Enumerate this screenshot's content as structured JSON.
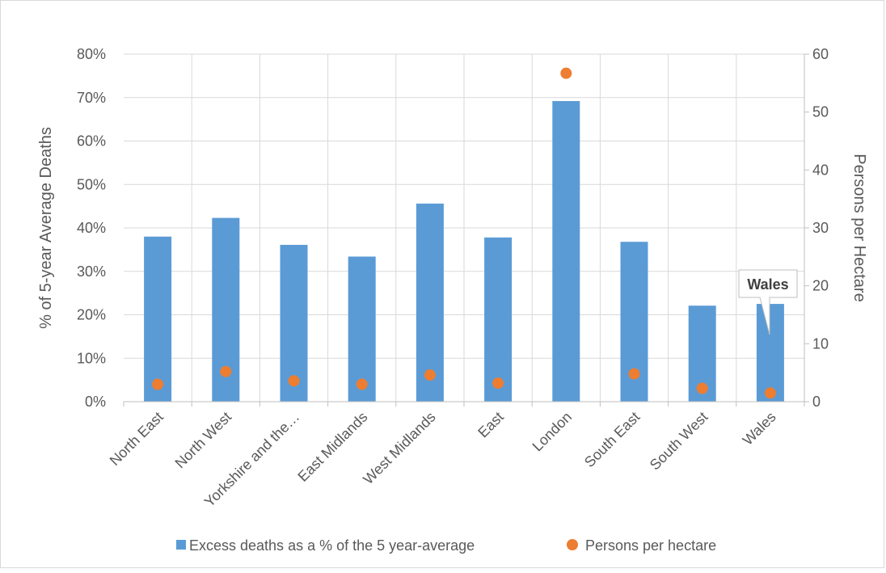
{
  "chart_data": {
    "type": "bar",
    "categories": [
      "North East",
      "North West",
      "Yorkshire and the…",
      "East Midlands",
      "West Midlands",
      "East",
      "London",
      "South East",
      "South West",
      "Wales"
    ],
    "series": [
      {
        "name": "Excess deaths as a % of the 5 year-average",
        "type": "bar",
        "axis": "left",
        "color": "#5b9bd5",
        "values": [
          38.0,
          42.3,
          36.1,
          33.4,
          45.6,
          37.8,
          69.2,
          36.8,
          22.1,
          22.5
        ]
      },
      {
        "name": "Persons per hectare",
        "type": "scatter",
        "axis": "right",
        "color": "#ed7d31",
        "values": [
          3.0,
          5.2,
          3.6,
          3.0,
          4.6,
          3.2,
          56.7,
          4.8,
          2.3,
          1.5
        ]
      }
    ],
    "ylabel": "% of 5-year Average Deaths",
    "y2label": "Persons per Hectare",
    "ylim": [
      0,
      80
    ],
    "y2lim": [
      0,
      60
    ],
    "yticks": [
      "0%",
      "10%",
      "20%",
      "30%",
      "40%",
      "50%",
      "60%",
      "70%",
      "80%"
    ],
    "y2ticks": [
      "0",
      "10",
      "20",
      "30",
      "40",
      "50",
      "60"
    ],
    "grid": true,
    "legend_position": "bottom",
    "annotation": {
      "text": "Wales",
      "category": "Wales"
    }
  }
}
